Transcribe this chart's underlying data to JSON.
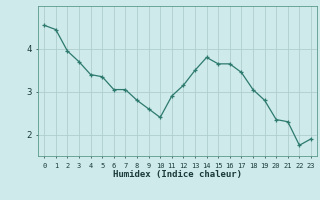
{
  "x": [
    0,
    1,
    2,
    3,
    4,
    5,
    6,
    7,
    8,
    9,
    10,
    11,
    12,
    13,
    14,
    15,
    16,
    17,
    18,
    19,
    20,
    21,
    22,
    23
  ],
  "y": [
    4.55,
    4.45,
    3.95,
    3.7,
    3.4,
    3.35,
    3.05,
    3.05,
    2.8,
    2.6,
    2.4,
    2.9,
    3.15,
    3.5,
    3.8,
    3.65,
    3.65,
    3.45,
    3.05,
    2.8,
    2.35,
    2.3,
    1.75,
    1.9
  ],
  "xlabel": "Humidex (Indice chaleur)",
  "line_color": "#2d7a6e",
  "marker": "+",
  "bg_color": "#ceeaea",
  "grid_color": "#b0cece",
  "ylim": [
    1.5,
    5.0
  ],
  "yticks": [
    2,
    3,
    4
  ],
  "xtick_labels": [
    "0",
    "1",
    "2",
    "3",
    "4",
    "5",
    "6",
    "7",
    "8",
    "9",
    "10",
    "11",
    "12",
    "13",
    "14",
    "15",
    "16",
    "17",
    "18",
    "19",
    "20",
    "21",
    "22",
    "23"
  ]
}
